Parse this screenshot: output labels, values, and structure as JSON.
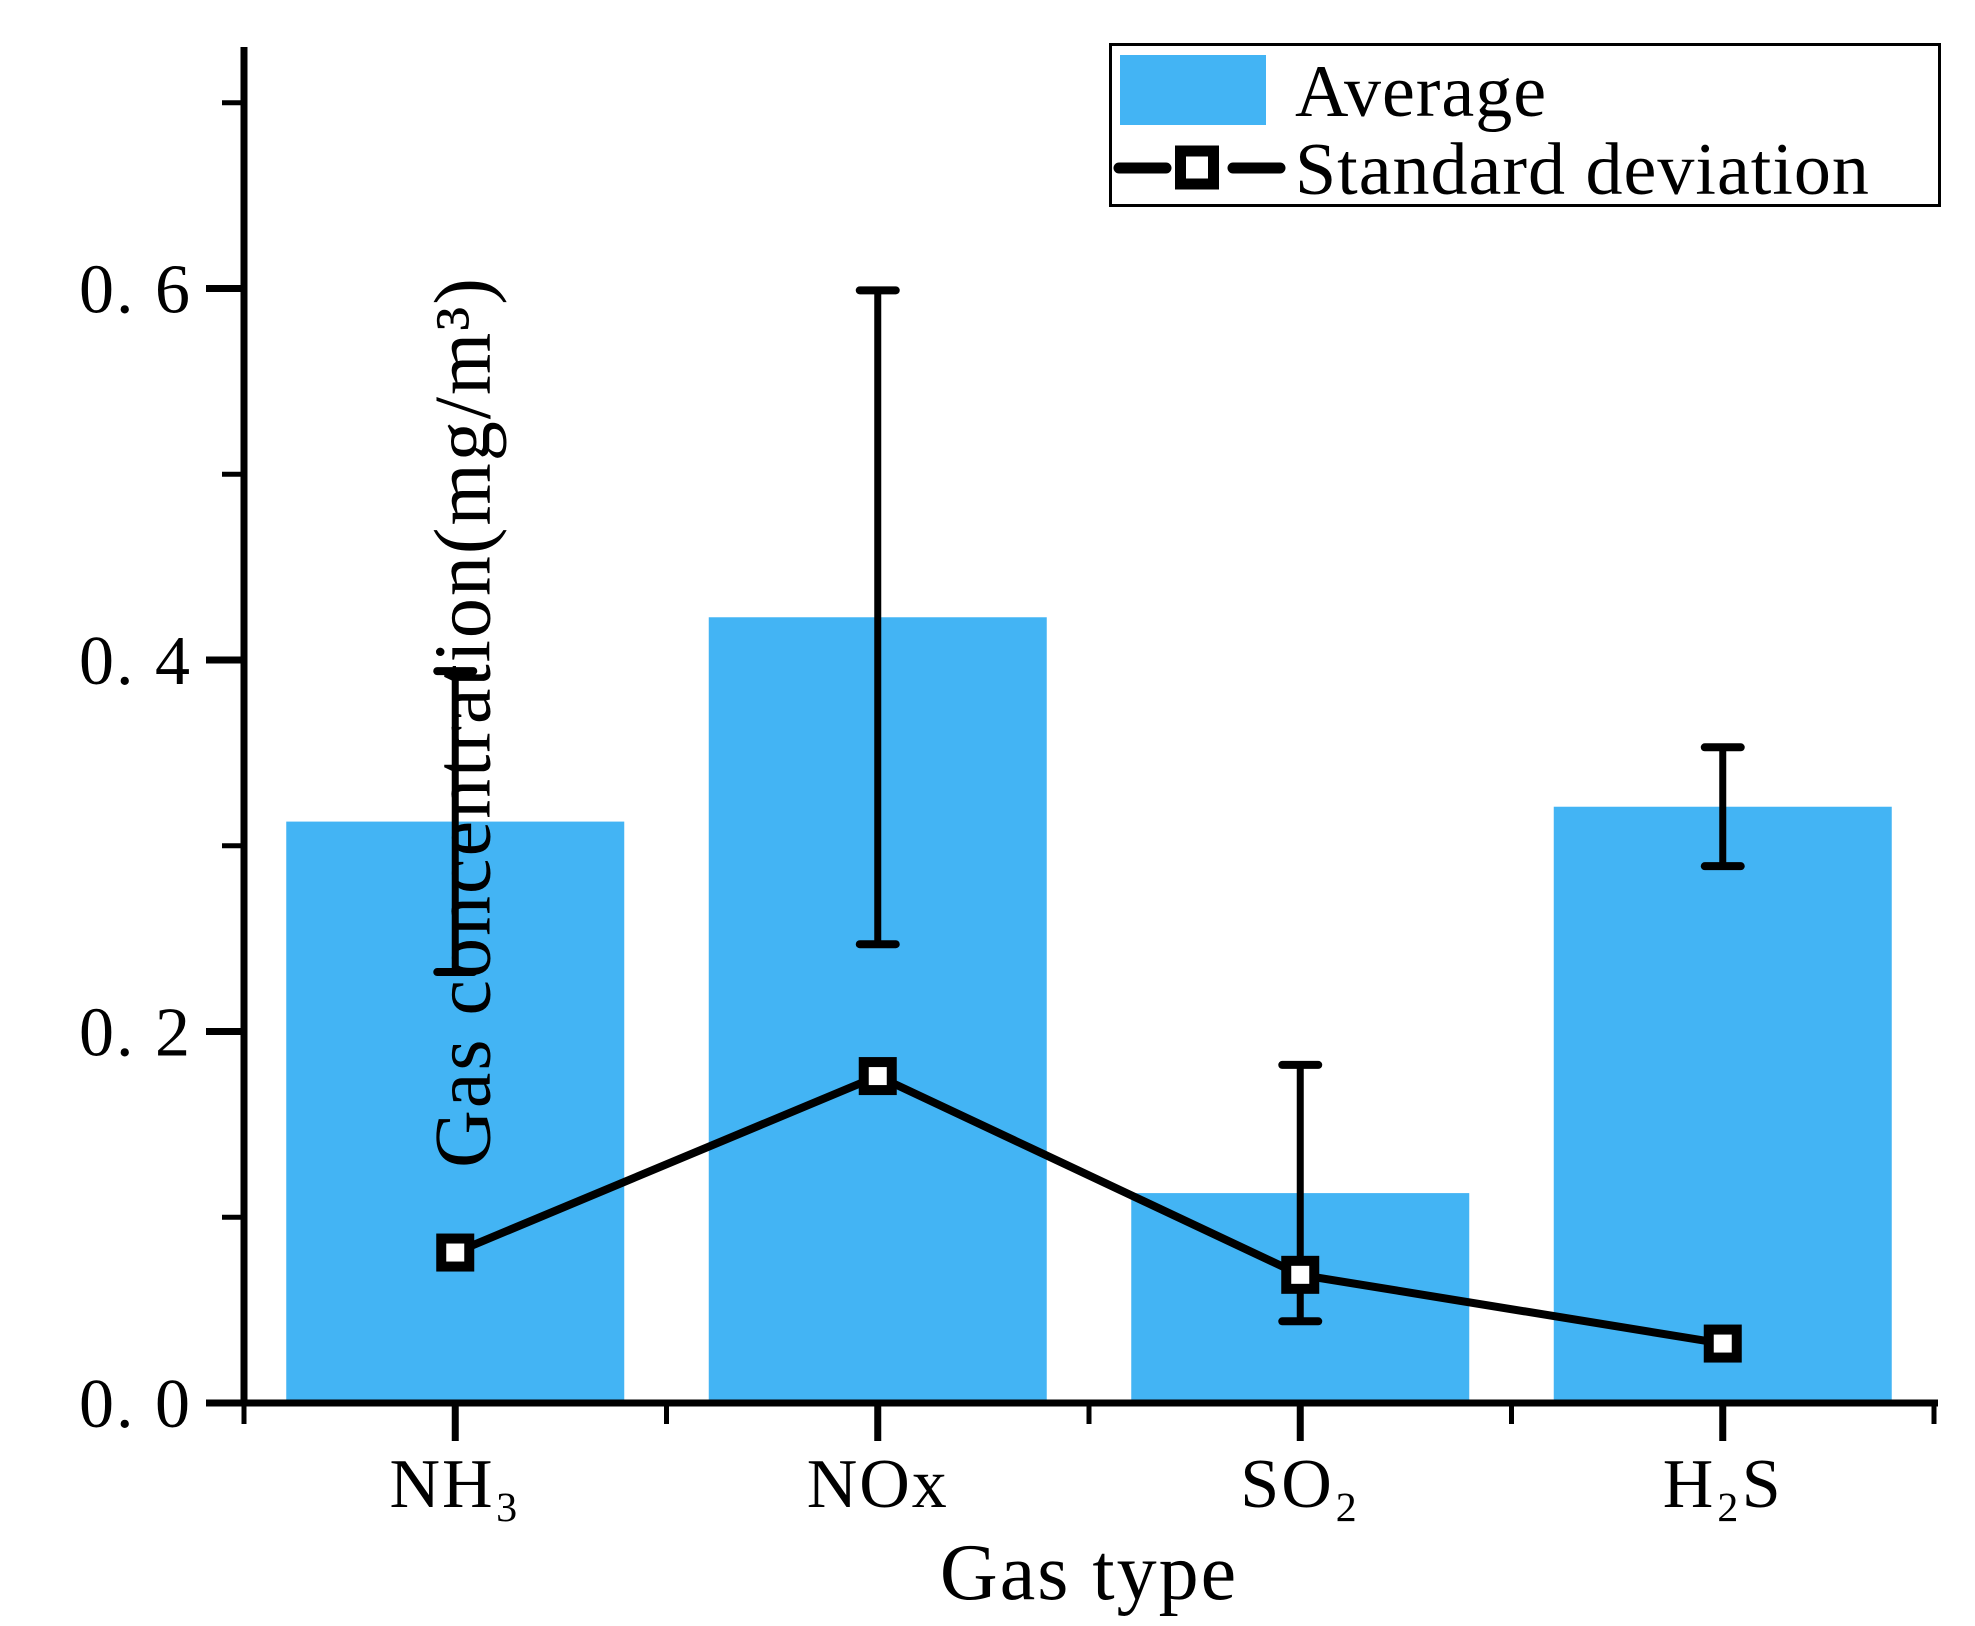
{
  "chart_data": {
    "type": "bar",
    "title": "",
    "xlabel": "Gas type",
    "ylabel": "Gas concentration(mg/m³)",
    "categories": [
      "NH₃",
      "NOx",
      "SO₂",
      "H₂S"
    ],
    "series": [
      {
        "name": "Average",
        "render": "bar",
        "values": [
          0.313,
          0.423,
          0.113,
          0.321
        ],
        "color": "#43B4F4"
      },
      {
        "name": "Standard deviation",
        "render": "line-with-open-square-marker",
        "values": [
          0.081,
          0.176,
          0.069,
          0.032
        ],
        "color": "#000000"
      }
    ],
    "error_bars": {
      "applies_to": "Average",
      "plus_minus": [
        0.081,
        0.176,
        0.069,
        0.032
      ]
    },
    "ylim": [
      0,
      0.73
    ],
    "yticks": {
      "values": [
        0,
        0.2,
        0.4,
        0.6
      ],
      "labels": [
        "0. 0",
        "0. 2",
        "0. 4",
        "0. 6"
      ]
    },
    "minor_ytick_values": [
      0.1,
      0.3,
      0.5,
      0.7
    ],
    "legend_position": "top-right",
    "grid": false,
    "axis_color": "#000000",
    "background_color": "#ffffff"
  }
}
